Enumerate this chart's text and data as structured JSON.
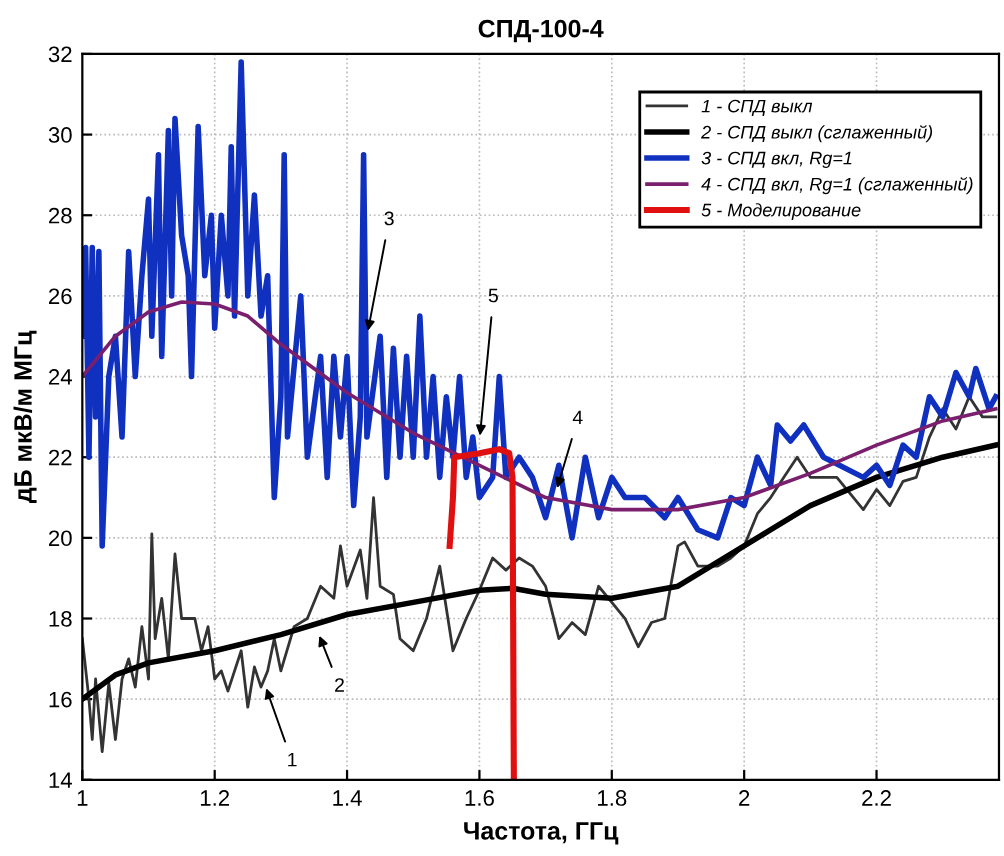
{
  "chart_data": {
    "type": "line",
    "title": "СПД-100-4",
    "xlabel": "Частота, ГГц",
    "ylabel": "дБ мкВ/м МГц",
    "xlim": [
      1,
      2.385
    ],
    "xticks": [
      1,
      1.2,
      1.4,
      1.6,
      1.8,
      2,
      2.2
    ],
    "ylim": [
      14,
      32
    ],
    "yticks": [
      14,
      16,
      18,
      20,
      22,
      24,
      26,
      28,
      30,
      32
    ],
    "grid": true,
    "legend": "top right",
    "series": [
      {
        "name": "1 - СПД выкл",
        "color": "#333333",
        "x": [
          1.0,
          1.01,
          1.015,
          1.02,
          1.03,
          1.04,
          1.05,
          1.06,
          1.07,
          1.08,
          1.09,
          1.1,
          1.105,
          1.11,
          1.12,
          1.13,
          1.14,
          1.15,
          1.17,
          1.18,
          1.19,
          1.2,
          1.21,
          1.22,
          1.24,
          1.25,
          1.26,
          1.27,
          1.28,
          1.29,
          1.3,
          1.32,
          1.34,
          1.36,
          1.38,
          1.39,
          1.4,
          1.42,
          1.43,
          1.44,
          1.45,
          1.47,
          1.48,
          1.5,
          1.52,
          1.54,
          1.56,
          1.58,
          1.6,
          1.62,
          1.64,
          1.66,
          1.68,
          1.7,
          1.72,
          1.74,
          1.76,
          1.78,
          1.8,
          1.82,
          1.84,
          1.86,
          1.88,
          1.9,
          1.91,
          1.93,
          1.96,
          1.98,
          2.0,
          2.02,
          2.04,
          2.06,
          2.08,
          2.1,
          2.14,
          2.18,
          2.2,
          2.22,
          2.24,
          2.26,
          2.28,
          2.3,
          2.32,
          2.34,
          2.36,
          2.38
        ],
        "values": [
          17.5,
          16,
          15,
          16.5,
          14.7,
          16.4,
          15,
          16.5,
          17,
          16.3,
          17.8,
          16.5,
          20.1,
          17.5,
          18.5,
          17,
          19.6,
          18,
          18,
          17.2,
          17.8,
          16.5,
          16.7,
          16.2,
          17.2,
          15.8,
          16.8,
          16.3,
          16.7,
          17.5,
          16.7,
          17.8,
          18,
          18.8,
          18.5,
          19.8,
          18.8,
          19.7,
          18.5,
          21,
          18.8,
          18.6,
          17.5,
          17.2,
          18,
          19.3,
          17.2,
          18,
          18.7,
          19.5,
          19.2,
          19.5,
          19.3,
          18.8,
          17.5,
          17.9,
          17.6,
          18.8,
          18.4,
          18,
          17.3,
          17.9,
          18,
          19.8,
          19.9,
          19.3,
          19.3,
          19.5,
          19.8,
          20.6,
          21,
          21.5,
          22,
          21.5,
          21.5,
          20.7,
          21.2,
          20.8,
          21.4,
          21.5,
          22.5,
          23.2,
          22.7,
          23.5,
          23,
          23
        ]
      },
      {
        "name": "2 - СПД выкл (сглаженный)",
        "color": "#000000",
        "x": [
          1.0,
          1.05,
          1.1,
          1.2,
          1.3,
          1.4,
          1.5,
          1.6,
          1.65,
          1.7,
          1.8,
          1.9,
          2.0,
          2.1,
          2.2,
          2.3,
          2.38
        ],
        "values": [
          16,
          16.6,
          16.9,
          17.2,
          17.6,
          18.1,
          18.4,
          18.7,
          18.75,
          18.6,
          18.5,
          18.8,
          19.8,
          20.8,
          21.5,
          22,
          22.3
        ]
      },
      {
        "name": "3 - СПД вкл, Rg=1",
        "color": "#1030c0",
        "x": [
          1.0,
          1.005,
          1.01,
          1.015,
          1.02,
          1.025,
          1.03,
          1.04,
          1.05,
          1.06,
          1.07,
          1.08,
          1.09,
          1.1,
          1.105,
          1.115,
          1.12,
          1.13,
          1.135,
          1.14,
          1.15,
          1.16,
          1.165,
          1.175,
          1.185,
          1.195,
          1.2,
          1.21,
          1.22,
          1.225,
          1.23,
          1.24,
          1.25,
          1.26,
          1.27,
          1.28,
          1.29,
          1.3,
          1.305,
          1.31,
          1.33,
          1.34,
          1.36,
          1.37,
          1.38,
          1.39,
          1.4,
          1.41,
          1.42,
          1.425,
          1.43,
          1.45,
          1.46,
          1.47,
          1.48,
          1.49,
          1.5,
          1.51,
          1.52,
          1.53,
          1.54,
          1.55,
          1.56,
          1.57,
          1.58,
          1.59,
          1.6,
          1.62,
          1.63,
          1.64,
          1.66,
          1.68,
          1.7,
          1.72,
          1.74,
          1.76,
          1.78,
          1.8,
          1.82,
          1.85,
          1.88,
          1.9,
          1.93,
          1.96,
          1.98,
          2.0,
          2.02,
          2.04,
          2.05,
          2.07,
          2.09,
          2.12,
          2.18,
          2.2,
          2.22,
          2.24,
          2.26,
          2.28,
          2.3,
          2.32,
          2.34,
          2.35,
          2.37,
          2.38
        ],
        "values": [
          25,
          27.2,
          22,
          27.2,
          23,
          27.1,
          19.8,
          24,
          25,
          22.5,
          27.1,
          24,
          26.5,
          28.4,
          25,
          29.5,
          24.5,
          30.1,
          26,
          30.4,
          27.5,
          26.5,
          24,
          30.2,
          26.5,
          28,
          25.2,
          28,
          26,
          29.7,
          25.5,
          31.8,
          26,
          28.5,
          25.5,
          26.5,
          21,
          23.5,
          29.5,
          22.5,
          26,
          22,
          24.5,
          21.5,
          24.5,
          22.5,
          24.5,
          20.8,
          23,
          29.5,
          22.5,
          25,
          21.5,
          24.7,
          22,
          24.5,
          22,
          25.5,
          22,
          24,
          21.5,
          23.5,
          22,
          24,
          21.5,
          22.5,
          21,
          21.5,
          24,
          21.5,
          22,
          21.5,
          20.5,
          21.8,
          20,
          22,
          20.5,
          21.5,
          21,
          21,
          20.5,
          21,
          20.2,
          20,
          21,
          20.8,
          22,
          21.3,
          22.8,
          22.4,
          22.8,
          22,
          21.5,
          21.8,
          21.3,
          22.3,
          22,
          23.5,
          23,
          24.1,
          23.5,
          24.2,
          23.2,
          23.5
        ]
      },
      {
        "name": "4 - СПД вкл, Rg=1 (сглаженный)",
        "color": "#7a1f6e",
        "x": [
          1.0,
          1.05,
          1.1,
          1.15,
          1.2,
          1.25,
          1.3,
          1.4,
          1.5,
          1.6,
          1.7,
          1.8,
          1.9,
          2.0,
          2.1,
          2.2,
          2.3,
          2.38
        ],
        "values": [
          24,
          25,
          25.6,
          25.85,
          25.8,
          25.5,
          24.8,
          23.6,
          22.6,
          21.8,
          21.0,
          20.7,
          20.7,
          21.0,
          21.6,
          22.3,
          22.9,
          23.2
        ]
      },
      {
        "name": "5 - Моделирование",
        "color": "#e01010",
        "x": [
          1.555,
          1.56,
          1.562,
          1.6,
          1.63,
          1.645,
          1.65,
          1.652
        ],
        "values": [
          19.8,
          21,
          22,
          22.1,
          22.2,
          22.1,
          21.5,
          14
        ]
      }
    ],
    "annotations": [
      {
        "text": "1",
        "x": 1.275,
        "y": 16.4
      },
      {
        "text": "2",
        "x": 1.355,
        "y": 17.7
      },
      {
        "text": "3",
        "x": 1.43,
        "y": 25.0
      },
      {
        "text": "4",
        "x": 1.715,
        "y": 21.1
      },
      {
        "text": "5",
        "x": 1.6,
        "y": 22.4
      }
    ]
  }
}
